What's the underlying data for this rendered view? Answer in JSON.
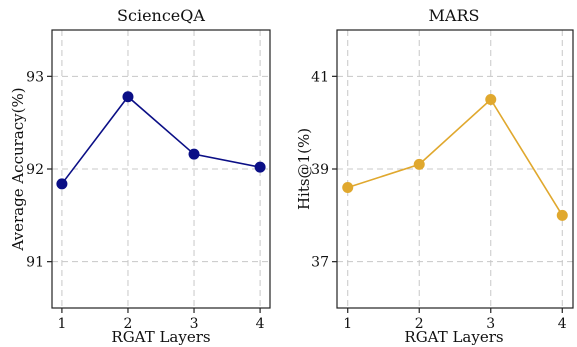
{
  "chart_data": [
    {
      "type": "line",
      "title": "ScienceQA",
      "xlabel": "RGAT Layers",
      "ylabel": "Average Accuracy(%)",
      "x": [
        1,
        2,
        3,
        4
      ],
      "x_tick_labels": [
        "1",
        "2",
        "3",
        "4"
      ],
      "xlim": [
        0.85,
        4.15
      ],
      "ylim": [
        90.5,
        93.5
      ],
      "y_ticks": [
        91,
        92,
        93
      ],
      "y_tick_labels": [
        "91",
        "92",
        "93"
      ],
      "grid": true,
      "series": [
        {
          "values": [
            91.84,
            92.78,
            92.16,
            92.02
          ],
          "color": "#0b0f86"
        }
      ]
    },
    {
      "type": "line",
      "title": "MARS",
      "xlabel": "RGAT Layers",
      "ylabel": "Hits@1(%)",
      "x": [
        1,
        2,
        3,
        4
      ],
      "x_tick_labels": [
        "1",
        "2",
        "3",
        "4"
      ],
      "xlim": [
        0.85,
        4.15
      ],
      "ylim": [
        36,
        42
      ],
      "y_ticks": [
        37,
        39,
        41
      ],
      "y_tick_labels": [
        "37",
        "39",
        "41"
      ],
      "grid": true,
      "series": [
        {
          "values": [
            38.6,
            39.1,
            40.5,
            38.0
          ],
          "color": "#e0a82e"
        }
      ]
    }
  ]
}
